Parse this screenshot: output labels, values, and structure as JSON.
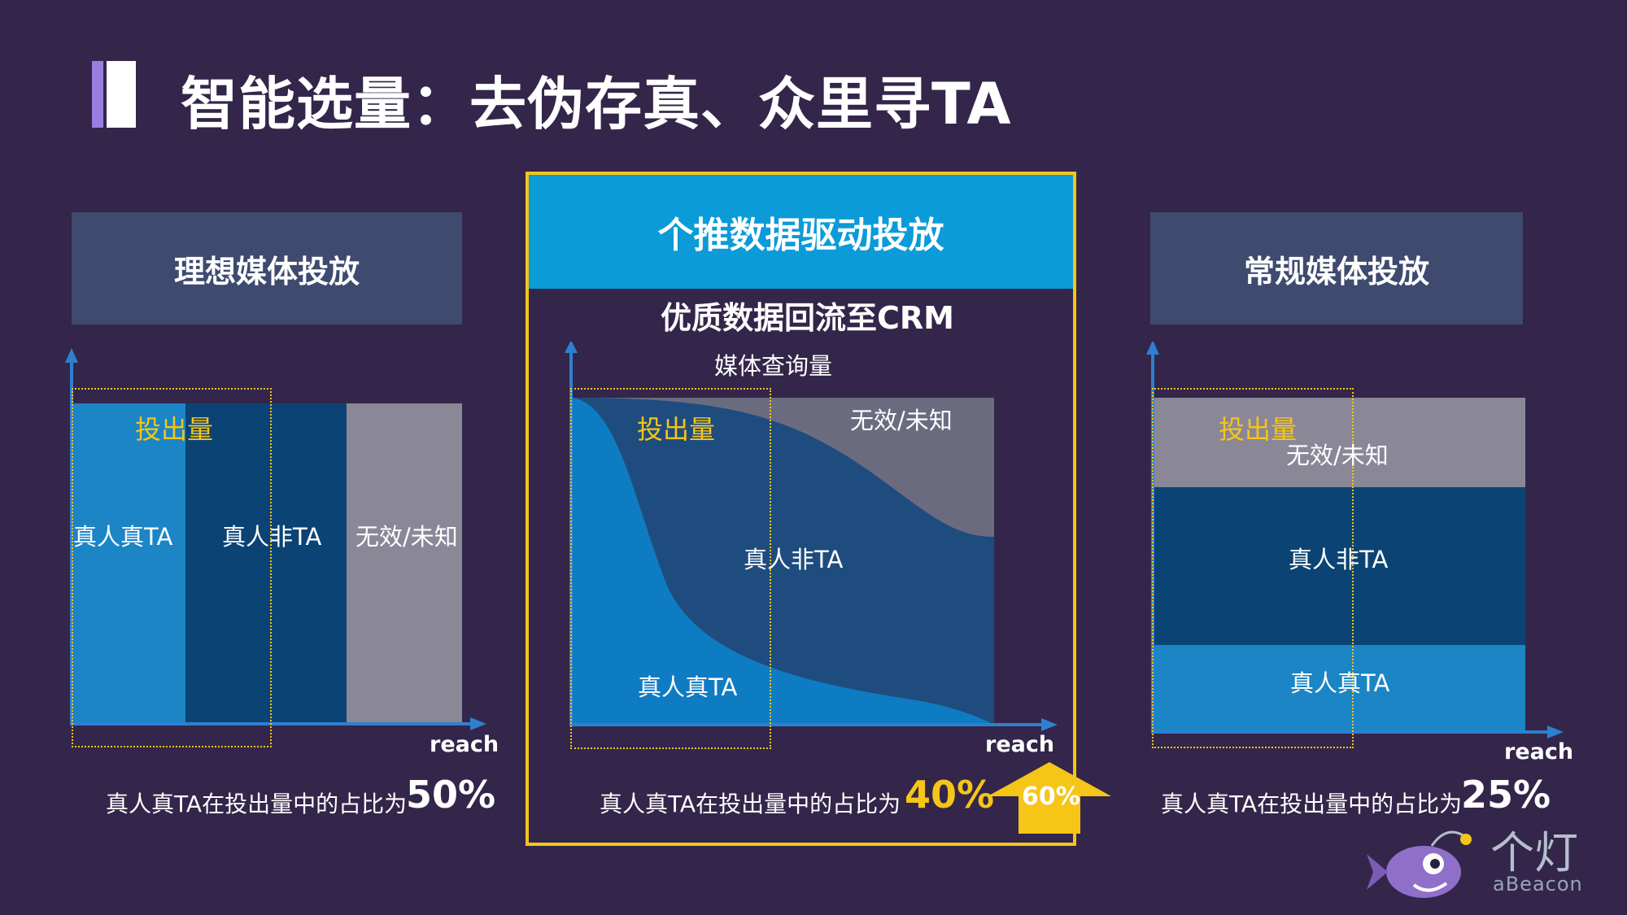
{
  "title": "智能选量：去伪存真、众里寻TA",
  "reach_label": "reach",
  "left": {
    "header": "理想媒体投放",
    "output_label": "投出量",
    "seg_true_ta": "真人真TA",
    "seg_true_non_ta": "真人非TA",
    "seg_invalid": "无效/未知",
    "caption_prefix": "真人真TA在投出量中的占比为",
    "caption_pct": "50%"
  },
  "center": {
    "header": "个推数据驱动投放",
    "subheader": "优质数据回流至CRM",
    "axis_label": "媒体查询量",
    "output_label": "投出量",
    "seg_invalid": "无效/未知",
    "seg_true_non_ta": "真人非TA",
    "seg_true_ta": "真人真TA",
    "caption_prefix": "真人真TA在投出量中的占比为",
    "caption_pct": "40%",
    "arrow_pct": "60%"
  },
  "right": {
    "header": "常规媒体投放",
    "output_label": "投出量",
    "seg_invalid": "无效/未知",
    "seg_true_non_ta": "真人非TA",
    "seg_true_ta": "真人真TA",
    "caption_prefix": "真人真TA在投出量中的占比为",
    "caption_pct": "25%"
  },
  "logo": {
    "cn": "个灯",
    "en": "aBeacon"
  },
  "colors": {
    "background": "#33264a",
    "panel_header": "#3e4a6e",
    "center_header": "#0a9bd8",
    "highlight": "#f5c518",
    "true_ta": "#1b85c6",
    "true_non_ta": "#0b4474",
    "invalid": "#8a8797"
  }
}
